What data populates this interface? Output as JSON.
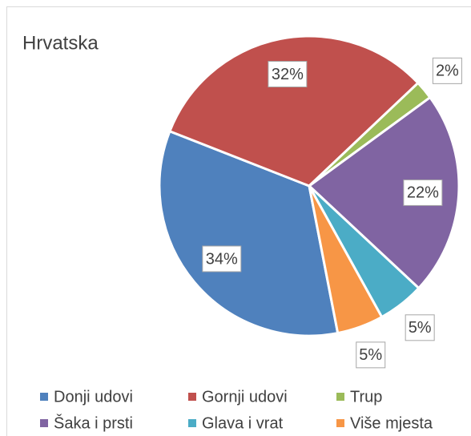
{
  "chart_data": {
    "type": "pie",
    "title": "Hrvatska",
    "categories": [
      "Donji udovi",
      "Gornji udovi",
      "Trup",
      "Šaka i prsti",
      "Glava i vrat",
      "Više mjesta"
    ],
    "values": [
      34,
      32,
      2,
      22,
      5,
      5
    ],
    "value_labels": [
      "34%",
      "32%",
      "2%",
      "22%",
      "5%",
      "5%"
    ],
    "colors": [
      "#4f81bd",
      "#c0504d",
      "#9bbb59",
      "#8064a2",
      "#4bacc6",
      "#f79646"
    ],
    "legend": "bottom"
  }
}
